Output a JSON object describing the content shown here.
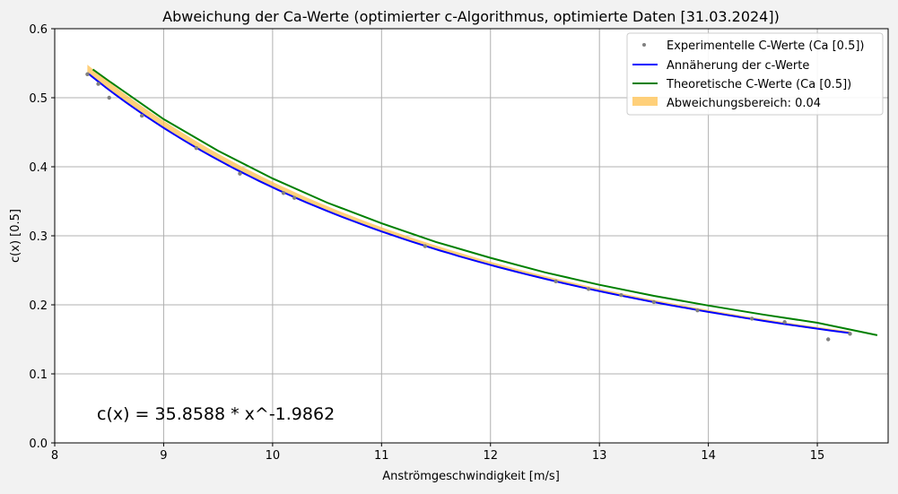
{
  "chart_data": {
    "type": "line",
    "title": "Abweichung der Ca-Werte (optimierter c-Algorithmus, optimierte Daten [31.03.2024])",
    "xlabel": "Anströmgeschwindigkeit [m/s]",
    "ylabel": "c(x) [0.5]",
    "xlim": [
      8,
      15.65
    ],
    "ylim": [
      0,
      0.6
    ],
    "xticks": [
      8,
      9,
      10,
      11,
      12,
      13,
      14,
      15
    ],
    "yticks": [
      0.0,
      0.1,
      0.2,
      0.3,
      0.4,
      0.5,
      0.6
    ],
    "grid": true,
    "legend_position": "top-right",
    "annotation": "c(x) = 35.8588 * x^-1.9862",
    "series": [
      {
        "name": "Experimentelle C-Werte (Ca [0.5])",
        "kind": "scatter",
        "color": "#808080",
        "x": [
          8.3,
          8.4,
          8.5,
          8.8,
          9.3,
          9.7,
          10.1,
          10.2,
          11.4,
          12.6,
          12.9,
          13.2,
          13.5,
          13.9,
          14.4,
          14.7,
          15.1,
          15.3
        ],
        "y": [
          0.534,
          0.52,
          0.5,
          0.474,
          0.427,
          0.39,
          0.362,
          0.355,
          0.285,
          0.234,
          0.223,
          0.214,
          0.204,
          0.192,
          0.18,
          0.175,
          0.15,
          0.158
        ]
      },
      {
        "name": "Annäherung der c-Werte",
        "kind": "line",
        "color": "#0000ff",
        "a": 35.8588,
        "b": -1.9862,
        "x_range": [
          8.3,
          15.3
        ]
      },
      {
        "name": "Theoretische C-Werte (Ca [0.5])",
        "kind": "line",
        "color": "#008000",
        "x": [
          8.35,
          8.5,
          9.0,
          9.5,
          10.0,
          10.5,
          11.0,
          11.5,
          12.0,
          12.5,
          13.0,
          13.5,
          14.0,
          14.5,
          15.0,
          15.55
        ],
        "y": [
          0.541,
          0.524,
          0.469,
          0.423,
          0.383,
          0.348,
          0.318,
          0.291,
          0.268,
          0.247,
          0.229,
          0.213,
          0.199,
          0.186,
          0.174,
          0.156
        ]
      },
      {
        "name": "Abweichungsbereich: 0.04",
        "kind": "band",
        "color": "#ffc04d",
        "x_range": [
          8.3,
          15.3
        ]
      }
    ]
  }
}
